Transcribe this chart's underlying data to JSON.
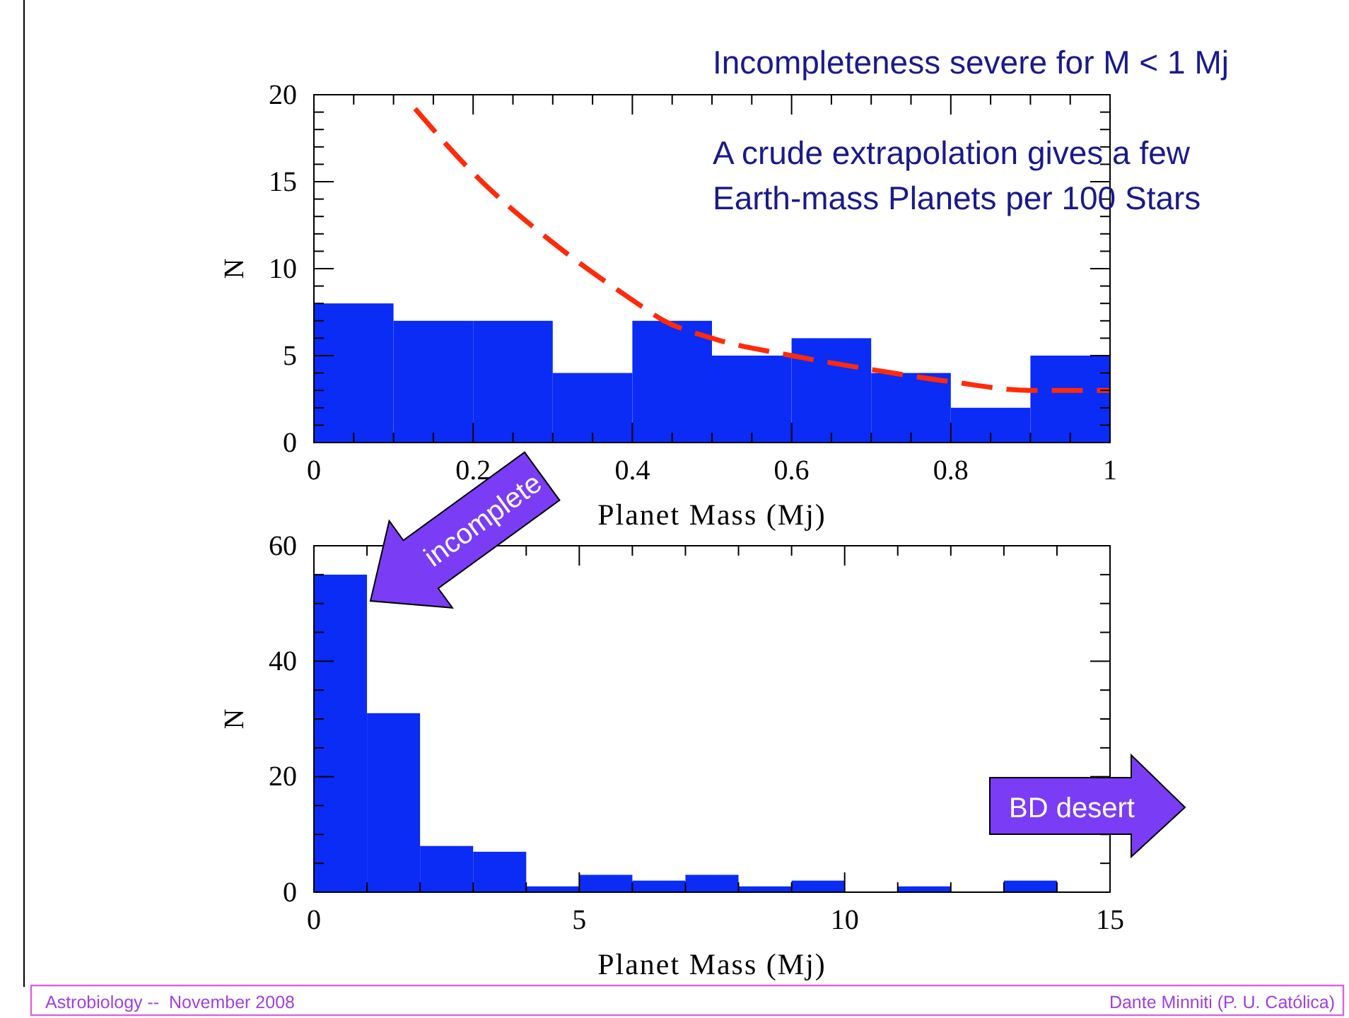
{
  "chart_data": [
    {
      "type": "histogram",
      "xlabel": "Planet Mass (Mj)",
      "ylabel": "N",
      "bins": [
        0,
        0.1,
        0.2,
        0.3,
        0.4,
        0.5,
        0.6,
        0.7,
        0.8,
        0.9,
        1.0
      ],
      "series": [
        {
          "color": "#0a2cf5",
          "values": [
            8,
            7,
            7,
            4,
            7,
            5,
            6,
            4,
            2,
            5
          ]
        },
        {
          "type": "line",
          "color": "#ff2a0a",
          "line_style": "dashed",
          "x": [
            0.127,
            0.2,
            0.3,
            0.4,
            0.44,
            0.5,
            0.6,
            0.7,
            0.8,
            0.9,
            1.0
          ],
          "values": [
            19.2,
            15.5,
            11.5,
            8.2,
            7,
            6,
            5,
            4.2,
            3.5,
            3,
            3
          ]
        }
      ],
      "xlim": [
        0,
        1
      ],
      "ylim": [
        0,
        20
      ],
      "xticks": [
        0,
        {
          "value": 0.05,
          "label": null
        },
        {
          "value": 0.1,
          "label": null
        },
        {
          "value": 0.15,
          "label": null
        },
        {
          "value": 0.2,
          "label": "0.2"
        },
        {
          "value": 0.25,
          "label": null
        },
        {
          "value": 0.3,
          "label": null
        },
        {
          "value": 0.35,
          "label": null
        },
        {
          "value": 0.4,
          "label": "0.4"
        },
        {
          "value": 0.45,
          "label": null
        },
        {
          "value": 0.5,
          "label": null
        },
        {
          "value": 0.55,
          "label": null
        },
        {
          "value": 0.6,
          "label": "0.6"
        },
        {
          "value": 0.65,
          "label": null
        },
        {
          "value": 0.7,
          "label": null
        },
        {
          "value": 0.75,
          "label": null
        },
        {
          "value": 0.8,
          "label": "0.8"
        },
        {
          "value": 0.85,
          "label": null
        },
        {
          "value": 0.9,
          "label": null
        },
        {
          "value": 0.95,
          "label": null
        },
        1
      ],
      "yticks": [
        0,
        {
          "value": 1,
          "label": null
        },
        {
          "value": 2,
          "label": null
        },
        {
          "value": 3,
          "label": null
        },
        {
          "value": 4,
          "label": null
        },
        5,
        {
          "value": 6,
          "label": null
        },
        {
          "value": 7,
          "label": null
        },
        {
          "value": 8,
          "label": null
        },
        {
          "value": 9,
          "label": null
        },
        10,
        {
          "value": 11,
          "label": null
        },
        {
          "value": 12,
          "label": null
        },
        {
          "value": 13,
          "label": null
        },
        {
          "value": 14,
          "label": null
        },
        15,
        {
          "value": 16,
          "label": null
        },
        {
          "value": 17,
          "label": null
        },
        {
          "value": 18,
          "label": null
        },
        {
          "value": 19,
          "label": null
        },
        20
      ],
      "annotations": [
        "Incompleteness severe for M < 1 Mj",
        "A crude extrapolation gives a few\nEarth-mass Planets per 100 Stars"
      ]
    },
    {
      "type": "histogram",
      "xlabel": "Planet Mass (Mj)",
      "ylabel": "N",
      "bins": [
        0,
        1,
        2,
        3,
        4,
        5,
        6,
        7,
        8,
        9,
        10,
        11,
        12,
        13,
        14,
        15
      ],
      "series": [
        {
          "color": "#0a2cf5",
          "values": [
            55,
            31,
            8,
            7,
            1,
            3,
            2,
            3,
            1,
            2,
            0,
            1,
            0,
            2,
            0
          ]
        }
      ],
      "xlim": [
        0,
        15
      ],
      "ylim": [
        0,
        60
      ],
      "xticks": [
        0,
        {
          "value": 1,
          "label": null
        },
        {
          "value": 2,
          "label": null
        },
        {
          "value": 3,
          "label": null
        },
        {
          "value": 4,
          "label": null
        },
        5,
        {
          "value": 6,
          "label": null
        },
        {
          "value": 7,
          "label": null
        },
        {
          "value": 8,
          "label": null
        },
        {
          "value": 9,
          "label": null
        },
        10,
        {
          "value": 11,
          "label": null
        },
        {
          "value": 12,
          "label": null
        },
        {
          "value": 13,
          "label": null
        },
        {
          "value": 14,
          "label": null
        },
        15
      ],
      "yticks": [
        0,
        {
          "value": 5,
          "label": null
        },
        {
          "value": 10,
          "label": null
        },
        {
          "value": 15,
          "label": null
        },
        20,
        {
          "value": 25,
          "label": null
        },
        {
          "value": 30,
          "label": null
        },
        {
          "value": 35,
          "label": null
        },
        40,
        {
          "value": 45,
          "label": null
        },
        {
          "value": 50,
          "label": null
        },
        {
          "value": 55,
          "label": null
        },
        60
      ],
      "annotations": [
        "incomplete",
        "BD desert",
        "Astrobiology --  November 2008",
        "Dante Minniti (P. U. Católica)"
      ]
    }
  ]
}
